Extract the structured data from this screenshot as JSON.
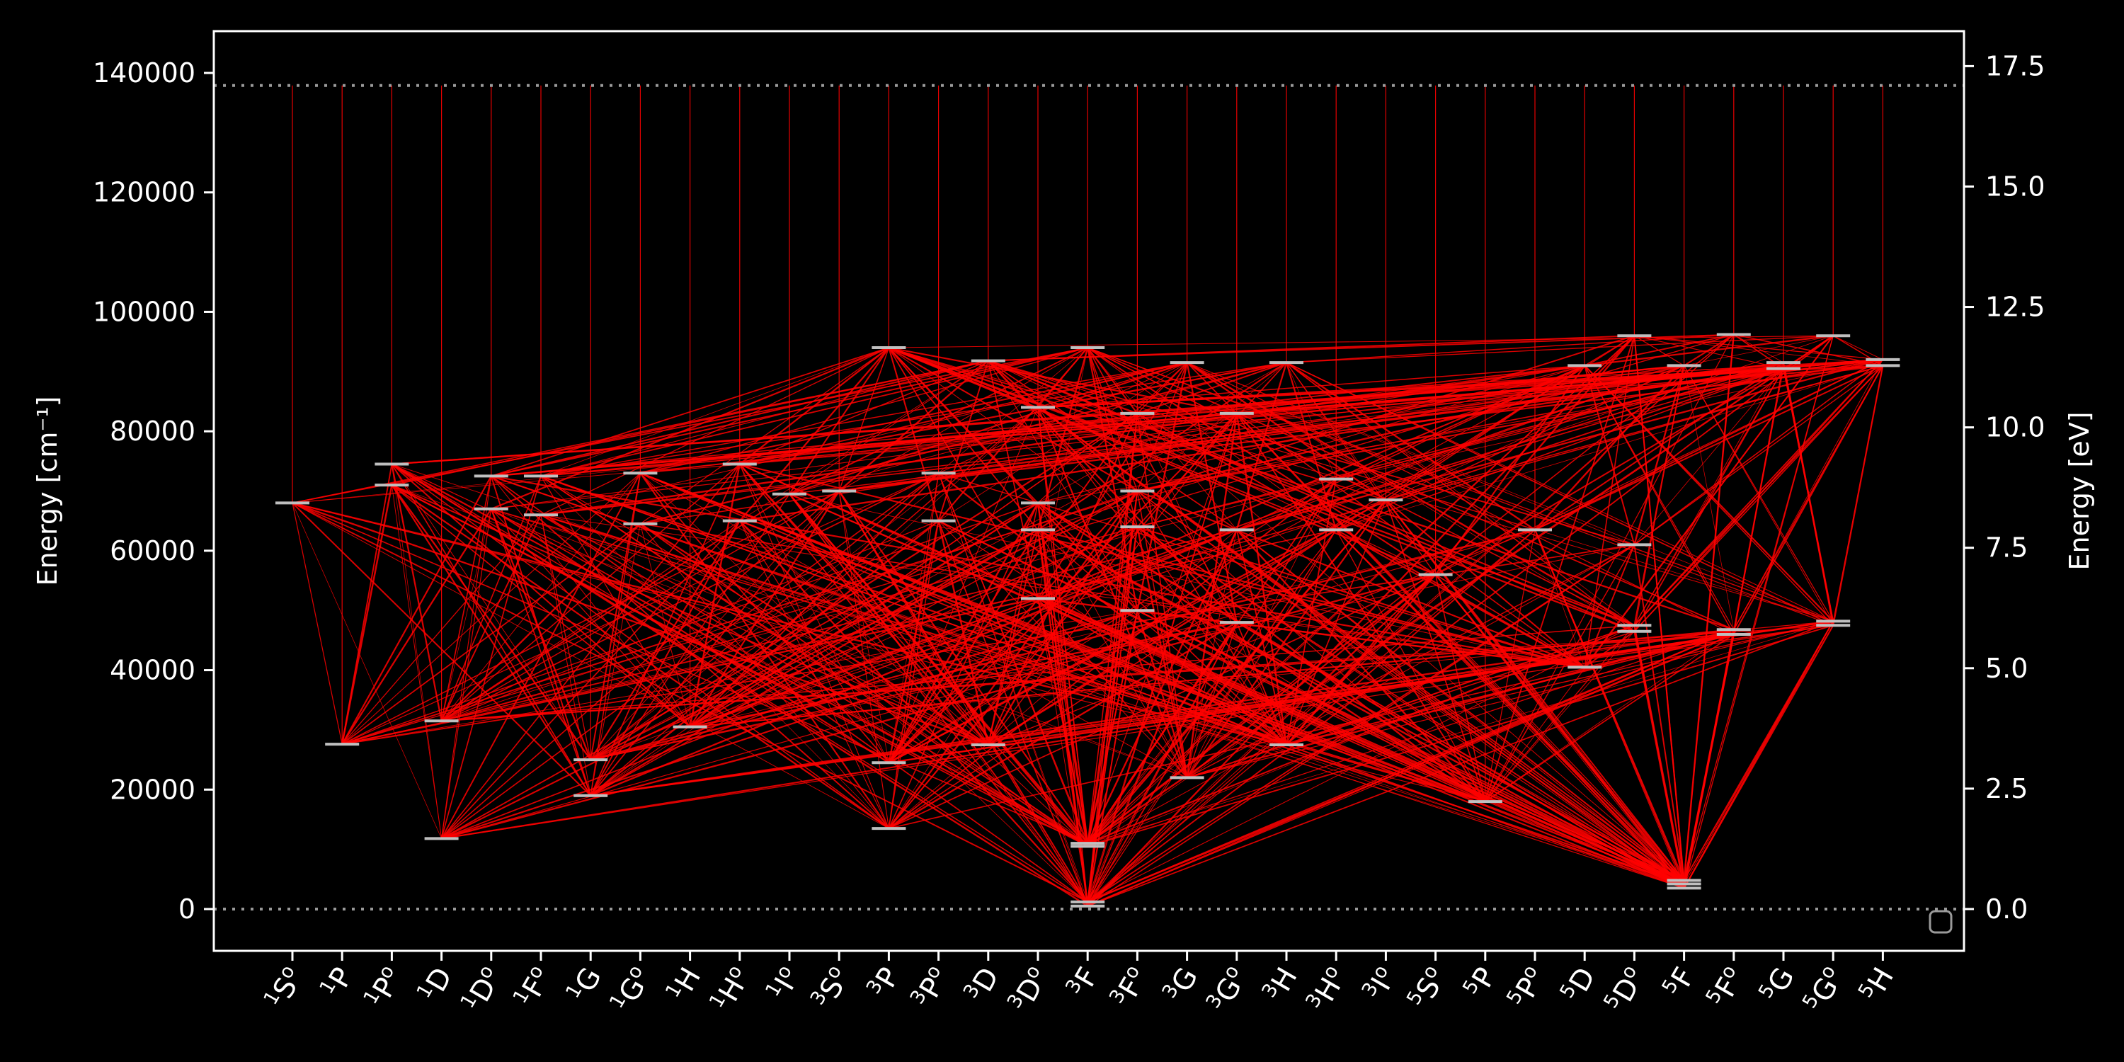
{
  "chart_data": {
    "type": "grotrian-diagram",
    "title": "",
    "ylabel_left": "Energy [cm⁻¹]",
    "ylabel_right": "Energy [eV]",
    "ylim_cm": [
      -7000,
      147000
    ],
    "ylim_ev": [
      -0.868,
      18.226
    ],
    "left_ticks": [
      "0",
      "20000",
      "40000",
      "60000",
      "80000",
      "100000",
      "120000",
      "140000"
    ],
    "left_tick_values": [
      0,
      20000,
      40000,
      60000,
      80000,
      100000,
      120000,
      140000
    ],
    "right_ticks": [
      "0.0",
      "2.5",
      "5.0",
      "7.5",
      "10.0",
      "12.5",
      "15.0",
      "17.5"
    ],
    "right_tick_values": [
      0.0,
      2.5,
      5.0,
      7.5,
      10.0,
      12.5,
      15.0,
      17.5
    ],
    "ionization_limit_cm": 137900,
    "ground_line_cm": 0,
    "terms": [
      {
        "mult": "1",
        "L": "S",
        "odd": true,
        "levels": [
          68000
        ]
      },
      {
        "mult": "1",
        "L": "P",
        "odd": false,
        "levels": [
          27600
        ]
      },
      {
        "mult": "1",
        "L": "P",
        "odd": true,
        "levels": [
          71000,
          74500
        ]
      },
      {
        "mult": "1",
        "L": "D",
        "odd": false,
        "levels": [
          11800,
          31500
        ]
      },
      {
        "mult": "1",
        "L": "D",
        "odd": true,
        "levels": [
          67000,
          72500
        ]
      },
      {
        "mult": "1",
        "L": "F",
        "odd": true,
        "levels": [
          66000,
          72500
        ]
      },
      {
        "mult": "1",
        "L": "G",
        "odd": false,
        "levels": [
          19000,
          25000
        ]
      },
      {
        "mult": "1",
        "L": "G",
        "odd": true,
        "levels": [
          64500,
          73000
        ]
      },
      {
        "mult": "1",
        "L": "H",
        "odd": false,
        "levels": [
          30500
        ]
      },
      {
        "mult": "1",
        "L": "H",
        "odd": true,
        "levels": [
          65000,
          74500
        ]
      },
      {
        "mult": "1",
        "L": "I",
        "odd": true,
        "levels": [
          69500
        ]
      },
      {
        "mult": "3",
        "L": "S",
        "odd": true,
        "levels": [
          70000
        ]
      },
      {
        "mult": "3",
        "L": "P",
        "odd": false,
        "levels": [
          13500,
          24500,
          94000
        ]
      },
      {
        "mult": "3",
        "L": "P",
        "odd": true,
        "levels": [
          65000,
          73000
        ]
      },
      {
        "mult": "3",
        "L": "D",
        "odd": false,
        "levels": [
          27500,
          91800
        ]
      },
      {
        "mult": "3",
        "L": "D",
        "odd": true,
        "levels": [
          52000,
          63500,
          68000,
          84000
        ]
      },
      {
        "mult": "3",
        "L": "F",
        "odd": false,
        "levels": [
          500,
          1200,
          10500,
          11000,
          94000
        ]
      },
      {
        "mult": "3",
        "L": "F",
        "odd": true,
        "levels": [
          50000,
          64000,
          70000,
          83000
        ]
      },
      {
        "mult": "3",
        "L": "G",
        "odd": false,
        "levels": [
          22000,
          91500
        ]
      },
      {
        "mult": "3",
        "L": "G",
        "odd": true,
        "levels": [
          48000,
          63500,
          83000
        ]
      },
      {
        "mult": "3",
        "L": "H",
        "odd": false,
        "levels": [
          27500,
          91500
        ]
      },
      {
        "mult": "3",
        "L": "H",
        "odd": true,
        "levels": [
          63500,
          72000
        ]
      },
      {
        "mult": "3",
        "L": "I",
        "odd": true,
        "levels": [
          68500
        ]
      },
      {
        "mult": "5",
        "L": "S",
        "odd": true,
        "levels": [
          56000
        ]
      },
      {
        "mult": "5",
        "L": "P",
        "odd": false,
        "levels": [
          18000
        ]
      },
      {
        "mult": "5",
        "L": "P",
        "odd": true,
        "levels": [
          63500
        ]
      },
      {
        "mult": "5",
        "L": "D",
        "odd": false,
        "levels": [
          40500,
          91000
        ]
      },
      {
        "mult": "5",
        "L": "D",
        "odd": true,
        "levels": [
          46500,
          47500,
          61000,
          96000
        ]
      },
      {
        "mult": "5",
        "L": "F",
        "odd": false,
        "levels": [
          3500,
          4200,
          4800,
          91000
        ]
      },
      {
        "mult": "5",
        "L": "F",
        "odd": true,
        "levels": [
          46000,
          46800,
          96200
        ]
      },
      {
        "mult": "5",
        "L": "G",
        "odd": false,
        "levels": [
          90500,
          91500
        ]
      },
      {
        "mult": "5",
        "L": "G",
        "odd": true,
        "levels": [
          47500,
          48200,
          96000
        ]
      },
      {
        "mult": "5",
        "L": "H",
        "odd": false,
        "levels": [
          91000,
          92000
        ]
      }
    ],
    "line_color": "#ff0000",
    "level_color": "#bfbfbf",
    "legend": "bottom-right",
    "grid": false
  }
}
